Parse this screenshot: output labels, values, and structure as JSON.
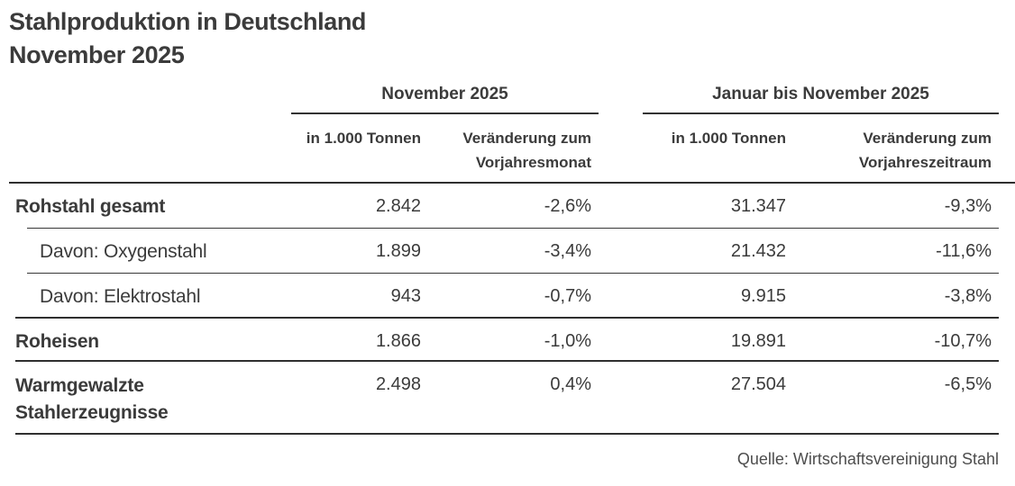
{
  "colors": {
    "text": "#3b3b3b",
    "line": "#2f2f2f",
    "source_text": "#4d4d4d",
    "background": "#ffffff"
  },
  "chart_data": {
    "type": "table",
    "title": "Stahlproduktion in Deutschland",
    "subtitle": "November 2025",
    "column_groups": [
      {
        "label": "November 2025",
        "span": 2
      },
      {
        "label": "Januar bis November 2025",
        "span": 2
      }
    ],
    "columns": [
      "in 1.000 Tonnen",
      "Veränderung zum Vorjahresmonat",
      "in 1.000 Tonnen",
      "Veränderung zum Vorjahreszeitraum"
    ],
    "rows": [
      {
        "label": "Rohstahl gesamt",
        "is_subrow": false,
        "values": [
          "2.842",
          "-2,6%",
          "31.347",
          "-9,3%"
        ]
      },
      {
        "label": "Davon: Oxygenstahl",
        "is_subrow": true,
        "values": [
          "1.899",
          "-3,4%",
          "21.432",
          "-11,6%"
        ]
      },
      {
        "label": "Davon: Elektrostahl",
        "is_subrow": true,
        "values": [
          "943",
          "-0,7%",
          "9.915",
          "-3,8%"
        ]
      },
      {
        "label": "Roheisen",
        "is_subrow": false,
        "values": [
          "1.866",
          "-1,0%",
          "19.891",
          "-10,7%"
        ]
      },
      {
        "label": "Warmgewalzte Stahlerzeugnisse",
        "is_subrow": false,
        "values": [
          "2.498",
          "0,4%",
          "27.504",
          "-6,5%"
        ]
      }
    ],
    "source": "Quelle: Wirtschaftsvereinigung Stahl"
  }
}
